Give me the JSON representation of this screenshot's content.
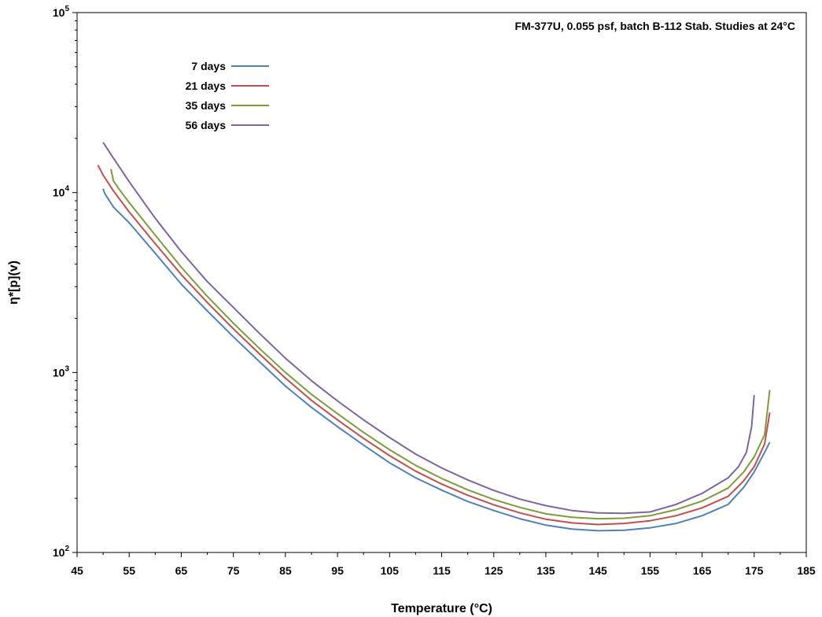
{
  "chart_data": {
    "type": "line",
    "title": "FM-377U, 0.055 psf, batch B-112 Stab. Studies at 24°C",
    "xlabel": "Temperature (°C)",
    "ylabel": "η*[p](v)",
    "xlim": [
      45,
      185
    ],
    "ylim": [
      100,
      100000
    ],
    "yscale": "log",
    "x_ticks": [
      45,
      55,
      65,
      75,
      85,
      95,
      105,
      115,
      125,
      135,
      145,
      155,
      165,
      175,
      185
    ],
    "y_ticks": [
      {
        "value": 100,
        "base": "10",
        "exp": "2"
      },
      {
        "value": 1000,
        "base": "10",
        "exp": "3"
      },
      {
        "value": 10000,
        "base": "10",
        "exp": "4"
      },
      {
        "value": 100000,
        "base": "10",
        "exp": "5"
      }
    ],
    "grid": false,
    "legend_position": "top-left",
    "series": [
      {
        "name": "7 days",
        "color": "#4f81bd",
        "points": [
          [
            50,
            10500
          ],
          [
            50.3,
            9900
          ],
          [
            52,
            8300
          ],
          [
            55,
            6800
          ],
          [
            60,
            4600
          ],
          [
            65,
            3100
          ],
          [
            70,
            2200
          ],
          [
            75,
            1580
          ],
          [
            80,
            1150
          ],
          [
            85,
            840
          ],
          [
            90,
            640
          ],
          [
            95,
            500
          ],
          [
            100,
            395
          ],
          [
            105,
            315
          ],
          [
            110,
            260
          ],
          [
            115,
            222
          ],
          [
            120,
            192
          ],
          [
            125,
            171
          ],
          [
            130,
            154
          ],
          [
            135,
            142
          ],
          [
            140,
            135
          ],
          [
            145,
            132
          ],
          [
            150,
            133
          ],
          [
            155,
            137
          ],
          [
            160,
            145
          ],
          [
            165,
            160
          ],
          [
            170,
            185
          ],
          [
            173,
            230
          ],
          [
            175,
            280
          ],
          [
            177,
            360
          ],
          [
            178,
            410
          ]
        ]
      },
      {
        "name": "21 days",
        "color": "#c0504d",
        "points": [
          [
            49,
            14200
          ],
          [
            50,
            12500
          ],
          [
            52,
            10200
          ],
          [
            55,
            7800
          ],
          [
            60,
            5200
          ],
          [
            65,
            3500
          ],
          [
            70,
            2450
          ],
          [
            75,
            1750
          ],
          [
            80,
            1270
          ],
          [
            85,
            930
          ],
          [
            90,
            700
          ],
          [
            95,
            545
          ],
          [
            100,
            430
          ],
          [
            105,
            345
          ],
          [
            110,
            283
          ],
          [
            115,
            240
          ],
          [
            120,
            208
          ],
          [
            125,
            184
          ],
          [
            130,
            166
          ],
          [
            135,
            153
          ],
          [
            140,
            146
          ],
          [
            145,
            143
          ],
          [
            150,
            145
          ],
          [
            155,
            150
          ],
          [
            160,
            160
          ],
          [
            165,
            177
          ],
          [
            170,
            205
          ],
          [
            173,
            250
          ],
          [
            175,
            300
          ],
          [
            177,
            400
          ],
          [
            178,
            600
          ]
        ]
      },
      {
        "name": "35 days",
        "color": "#7f9c3c",
        "points": [
          [
            51.5,
            13500
          ],
          [
            52,
            11600
          ],
          [
            53,
            10500
          ],
          [
            55,
            8800
          ],
          [
            60,
            5800
          ],
          [
            65,
            3850
          ],
          [
            70,
            2650
          ],
          [
            75,
            1880
          ],
          [
            80,
            1360
          ],
          [
            85,
            1000
          ],
          [
            90,
            755
          ],
          [
            95,
            590
          ],
          [
            100,
            465
          ],
          [
            105,
            372
          ],
          [
            110,
            305
          ],
          [
            115,
            258
          ],
          [
            120,
            223
          ],
          [
            125,
            197
          ],
          [
            130,
            178
          ],
          [
            135,
            164
          ],
          [
            140,
            157
          ],
          [
            145,
            154
          ],
          [
            150,
            155
          ],
          [
            155,
            160
          ],
          [
            160,
            173
          ],
          [
            165,
            193
          ],
          [
            170,
            228
          ],
          [
            173,
            280
          ],
          [
            175,
            340
          ],
          [
            177,
            450
          ],
          [
            178,
            800
          ]
        ]
      },
      {
        "name": "56 days",
        "color": "#8064a2",
        "points": [
          [
            50,
            19000
          ],
          [
            52,
            15500
          ],
          [
            55,
            11500
          ],
          [
            60,
            7200
          ],
          [
            65,
            4700
          ],
          [
            70,
            3200
          ],
          [
            75,
            2300
          ],
          [
            80,
            1650
          ],
          [
            85,
            1200
          ],
          [
            90,
            900
          ],
          [
            95,
            695
          ],
          [
            100,
            545
          ],
          [
            105,
            435
          ],
          [
            110,
            352
          ],
          [
            115,
            295
          ],
          [
            120,
            253
          ],
          [
            125,
            221
          ],
          [
            130,
            198
          ],
          [
            135,
            182
          ],
          [
            140,
            171
          ],
          [
            145,
            166
          ],
          [
            150,
            165
          ],
          [
            155,
            168
          ],
          [
            160,
            185
          ],
          [
            165,
            213
          ],
          [
            170,
            260
          ],
          [
            172,
            300
          ],
          [
            173.5,
            360
          ],
          [
            174.5,
            500
          ],
          [
            175,
            750
          ]
        ]
      }
    ]
  }
}
